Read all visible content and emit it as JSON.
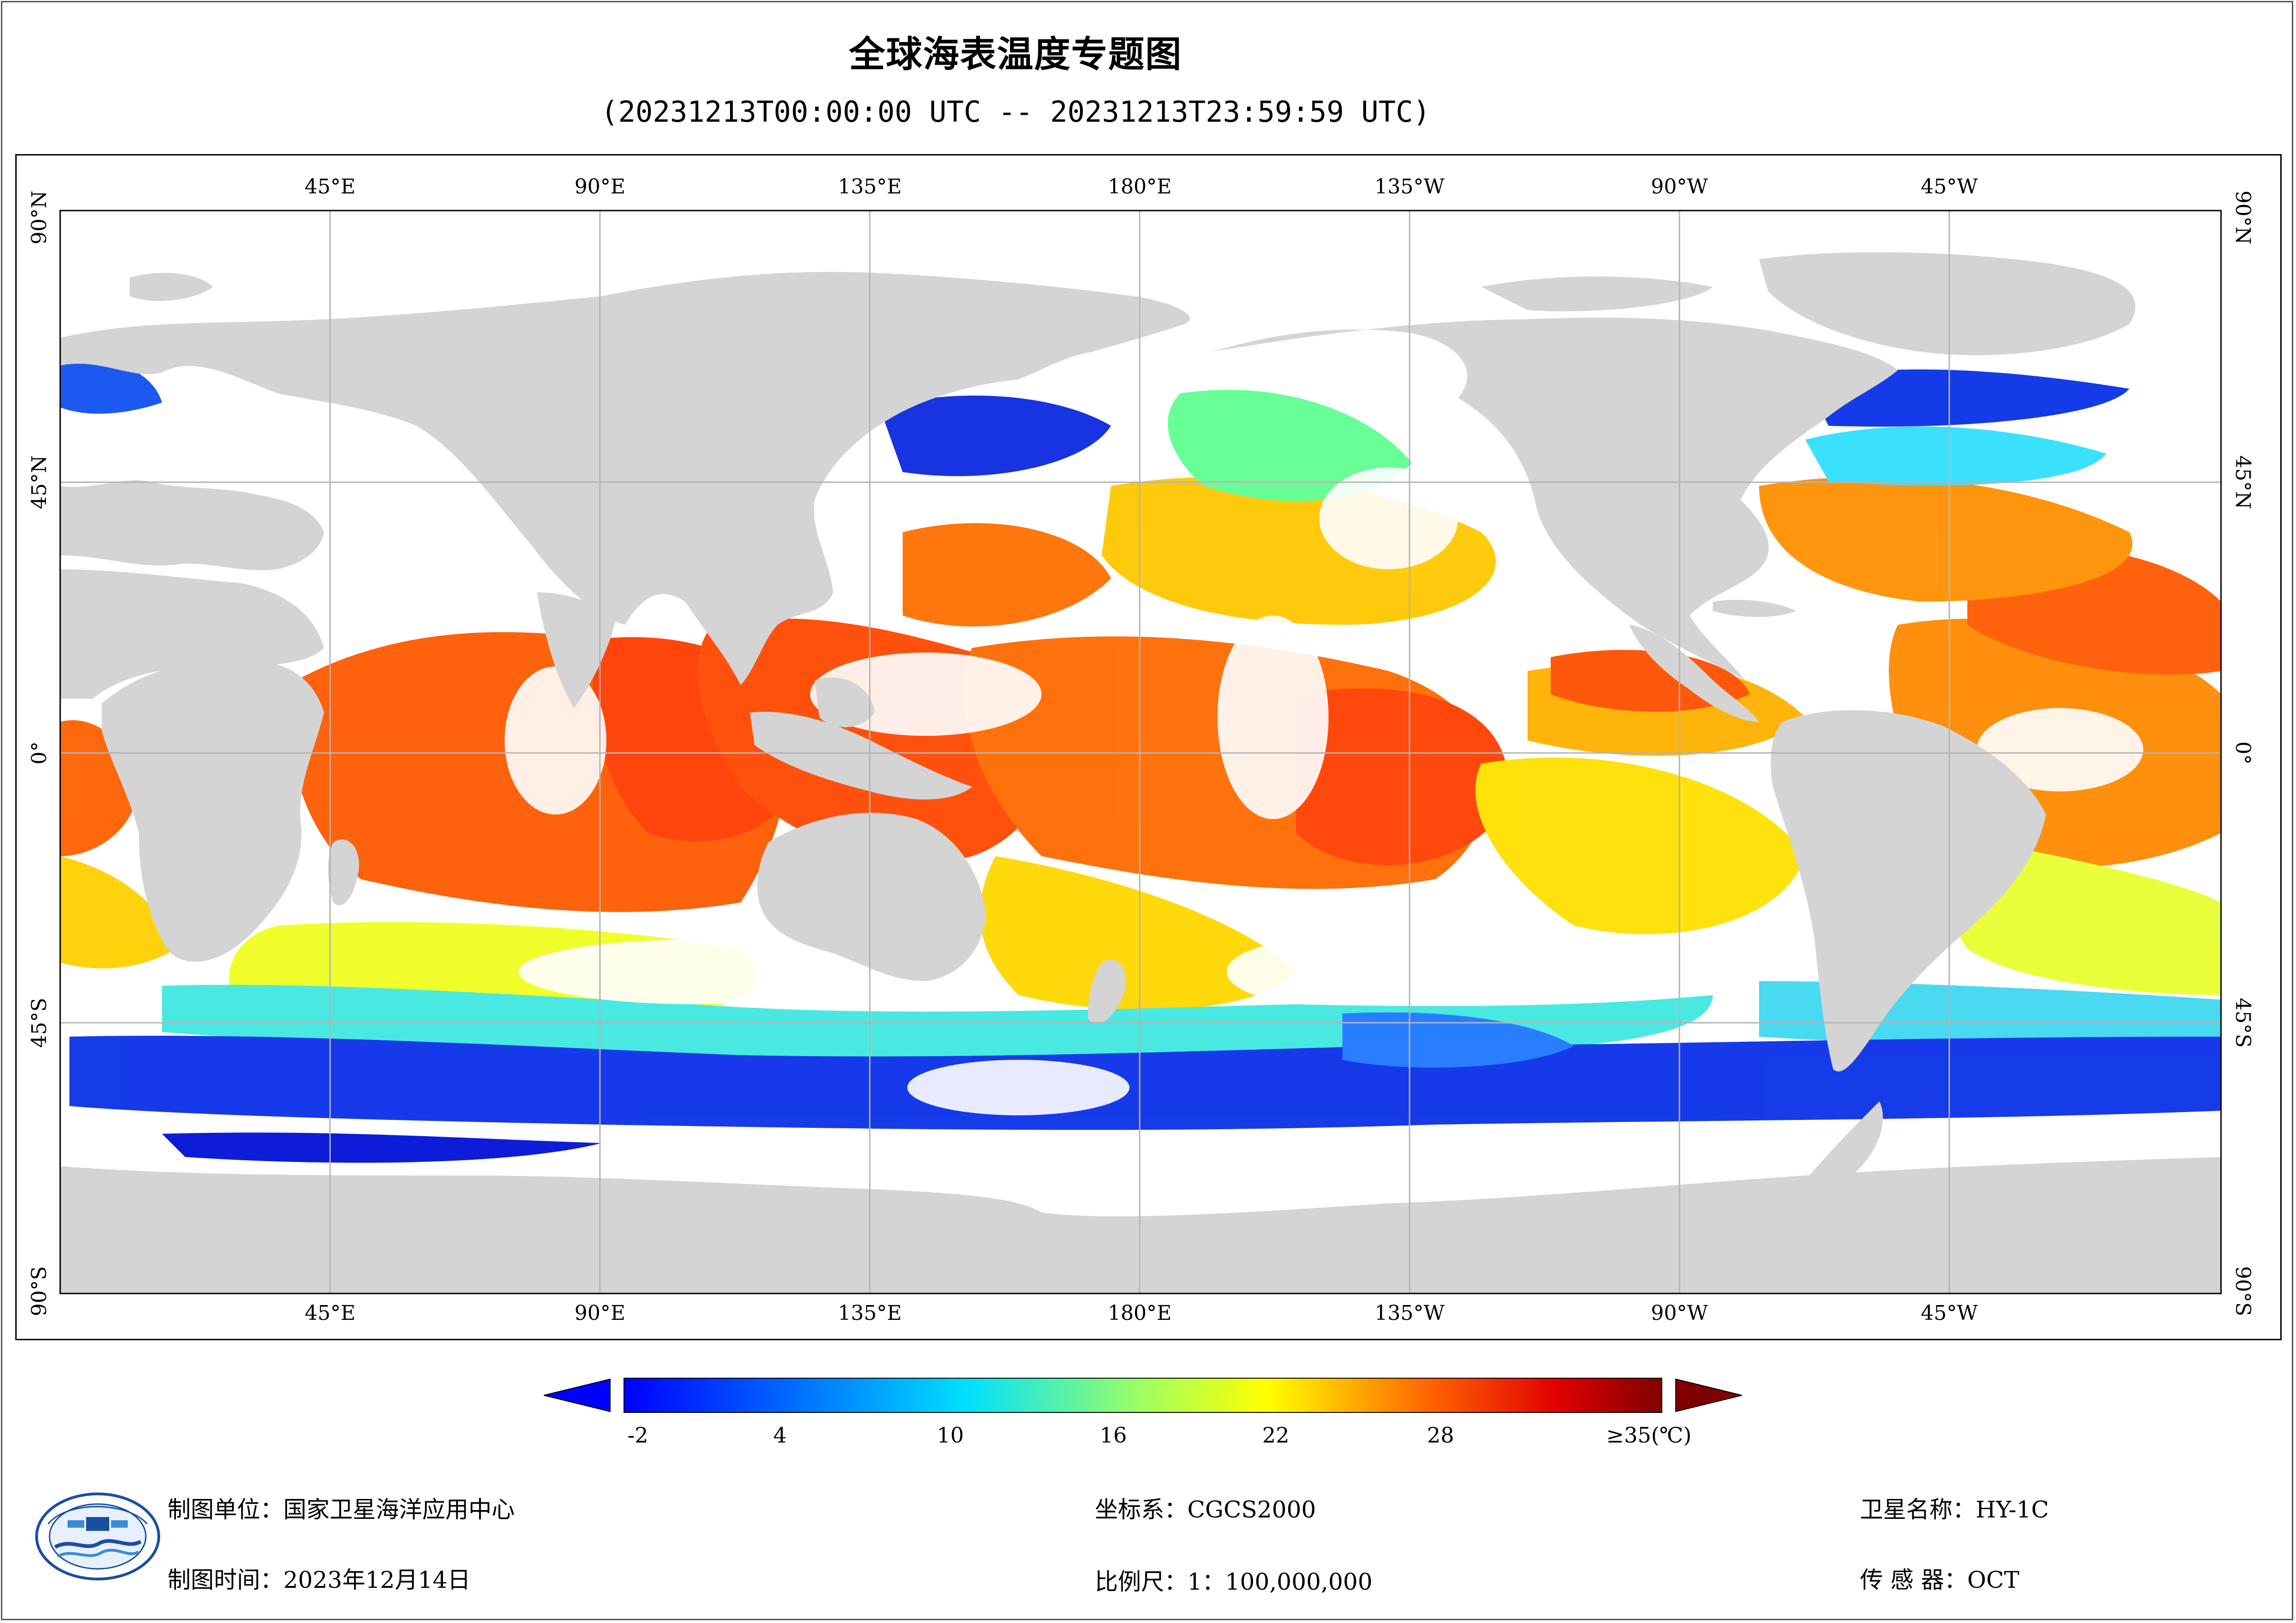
{
  "title": "全球海表温度专题图",
  "subtitle": "(20231213T00:00:00 UTC -- 20231213T23:59:59 UTC)",
  "map": {
    "lon_labels": [
      "45°E",
      "90°E",
      "135°E",
      "180°E",
      "135°W",
      "90°W",
      "45°W"
    ],
    "lat_labels_left": [
      "90°N",
      "45°N",
      "0°",
      "45°S",
      "90°S"
    ],
    "lat_labels_right": [
      "90°N",
      "45°N",
      "0°",
      "45°S",
      "90°S"
    ],
    "colors": {
      "land": "#d4d4d4",
      "cloud": "#ffffff",
      "graticule": "#b4b4b4"
    }
  },
  "colorbar": {
    "labels": [
      "-2",
      "4",
      "10",
      "16",
      "22",
      "28",
      "≥35(℃)"
    ],
    "min": -2,
    "max": 35,
    "under_color": "#0000ff",
    "over_color": "#800000"
  },
  "footer": {
    "unit_label": "制图单位：",
    "unit_value": "国家卫星海洋应用中心",
    "time_label": "制图时间：",
    "time_value": "2023年12月14日",
    "crs_label": "坐标系：",
    "crs_value": "CGCS2000",
    "scale_label": "比例尺：",
    "scale_value": "1：100,000,000",
    "satellite_label": "卫星名称：",
    "satellite_value": "HY-1C",
    "sensor_label": "传 感 器：",
    "sensor_value": "OCT"
  }
}
